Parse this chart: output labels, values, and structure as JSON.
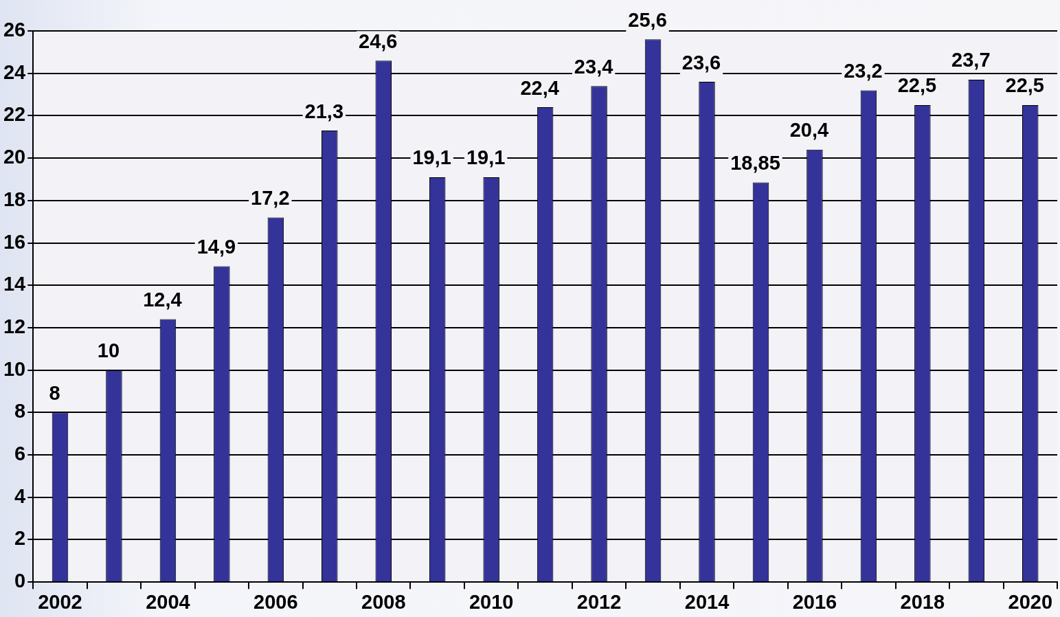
{
  "chart_data": {
    "type": "bar",
    "categories": [
      "2002",
      null,
      "2004",
      null,
      "2006",
      null,
      "2008",
      null,
      "2010",
      null,
      "2012",
      null,
      "2014",
      null,
      "2016",
      null,
      "2018",
      null,
      "2020"
    ],
    "values": [
      8,
      10,
      12.4,
      14.9,
      17.2,
      21.3,
      24.6,
      19.1,
      19.1,
      22.4,
      23.4,
      25.6,
      23.6,
      18.85,
      20.4,
      23.2,
      22.5,
      23.7,
      22.5
    ],
    "value_labels": [
      "8",
      "10",
      "12,4",
      "14,9",
      "17,2",
      "21,3",
      "24,6",
      "19,1",
      "19,1",
      "22,4",
      "23,4",
      "25,6",
      "23,6",
      "18,85",
      "20,4",
      "23,2",
      "22,5",
      "23,7",
      "22,5"
    ],
    "color": "#333399",
    "ylim": [
      0,
      26
    ],
    "yticks": [
      0,
      2,
      4,
      6,
      8,
      10,
      12,
      14,
      16,
      18,
      20,
      22,
      24,
      26
    ],
    "grid": "y",
    "legend": false
  }
}
